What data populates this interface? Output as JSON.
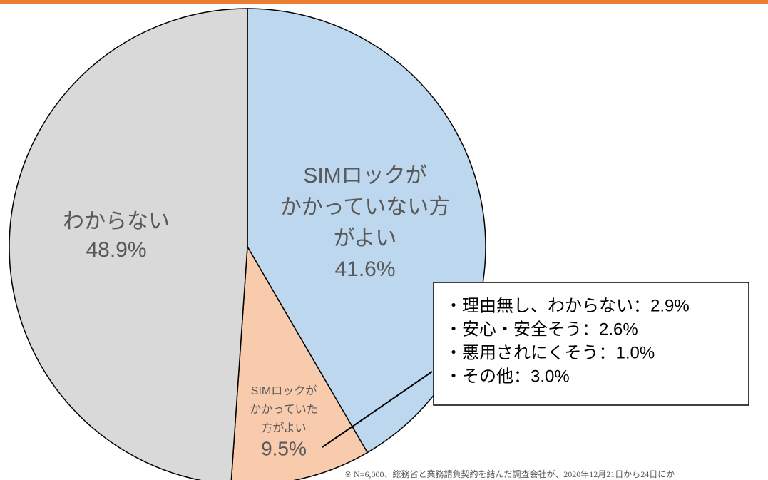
{
  "chart_data": {
    "type": "pie",
    "categories": [
      [
        "SIMロックが",
        "かかっていない方",
        "がよい"
      ],
      [
        "SIMロックが",
        "かかっていた",
        "方がよい"
      ],
      [
        "わからない"
      ]
    ],
    "values": [
      41.6,
      9.5,
      48.9
    ],
    "value_labels": [
      "41.6%",
      "9.5%",
      "48.9%"
    ],
    "colors": [
      "#bdd7ee",
      "#f8cbad",
      "#d9d9d9"
    ],
    "annotations": [
      "・理由無し、わからない：2.9%",
      "・安心・安全そう：2.6%",
      "・悪用されにくそう：1.0%",
      "・その他：3.0%"
    ],
    "footnote": "※ N=6,000、総務省と業務請負契約を結んだ調査会社が、2020年12月21日から24日にか"
  }
}
